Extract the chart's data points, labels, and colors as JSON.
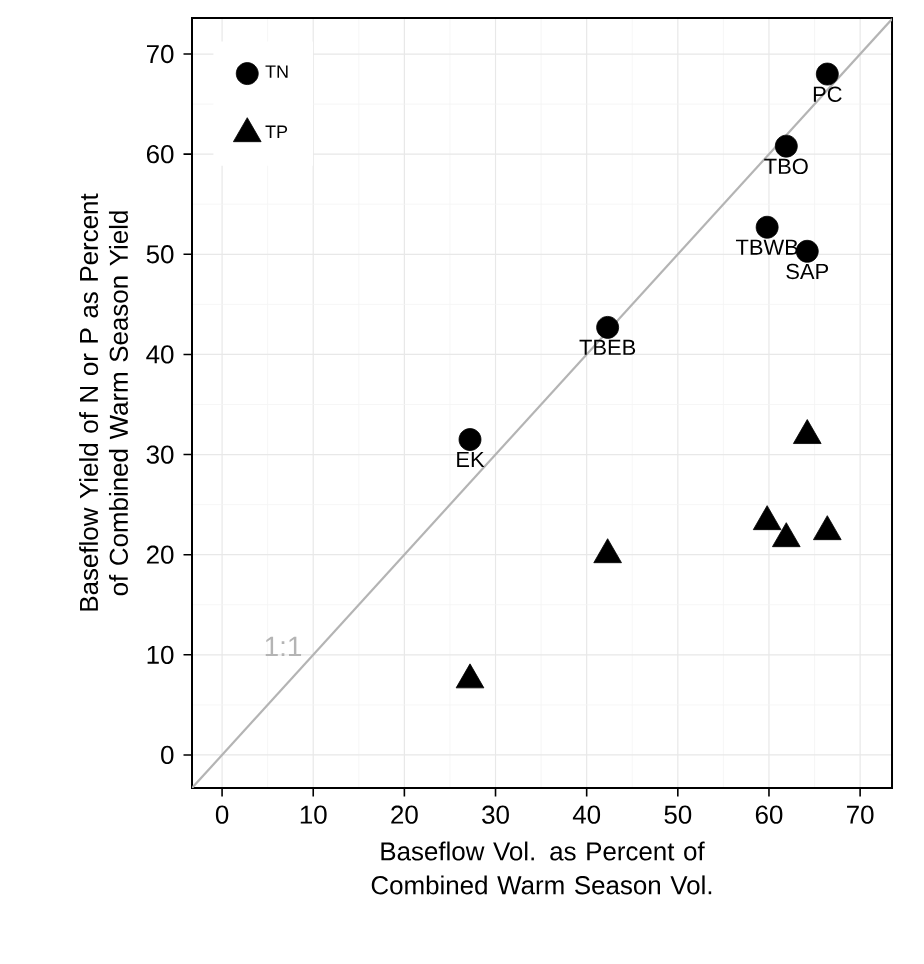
{
  "chart_data": {
    "type": "scatter",
    "xlabel": "Baseflow Vol. as Percent of Combined Warm Season Vol.",
    "ylabel": "Baseflow Yield of N or P as Percent of Combined Warm Season Yield",
    "xlim": [
      -3.3,
      73.5
    ],
    "ylim": [
      -3.3,
      73.6
    ],
    "xticks": [
      0,
      10,
      20,
      30,
      40,
      50,
      60,
      70
    ],
    "yticks": [
      0,
      10,
      20,
      30,
      40,
      50,
      60,
      70
    ],
    "grid": true,
    "legend": "top left",
    "series": [
      {
        "name": "TN",
        "color": "#000000",
        "marker": "circle",
        "x": [
          27.2,
          42.3,
          59.8,
          61.9,
          64.2,
          66.4
        ],
        "values": [
          31.5,
          42.7,
          52.7,
          60.8,
          50.3,
          68.0
        ]
      },
      {
        "name": "TP",
        "color": "#000000",
        "marker": "triangle",
        "x": [
          27.2,
          42.3,
          59.8,
          61.9,
          64.2,
          66.4
        ],
        "values": [
          7.5,
          20.0,
          23.3,
          21.6,
          31.9,
          22.3
        ]
      },
      {
        "name": "1:1",
        "type": "line",
        "color": "#b4b4b4",
        "x": [
          -3.3,
          73.5
        ],
        "values": [
          -3.3,
          73.5
        ]
      }
    ],
    "annotations": [
      {
        "text": "EK",
        "x": 27.2,
        "y": 31.5
      },
      {
        "text": "TBEB",
        "x": 42.3,
        "y": 42.7
      },
      {
        "text": "TBWB",
        "x": 59.8,
        "y": 52.7
      },
      {
        "text": "TBO",
        "x": 61.9,
        "y": 60.8
      },
      {
        "text": "SAP",
        "x": 64.2,
        "y": 50.3
      },
      {
        "text": "PC",
        "x": 66.4,
        "y": 68.0
      }
    ]
  }
}
